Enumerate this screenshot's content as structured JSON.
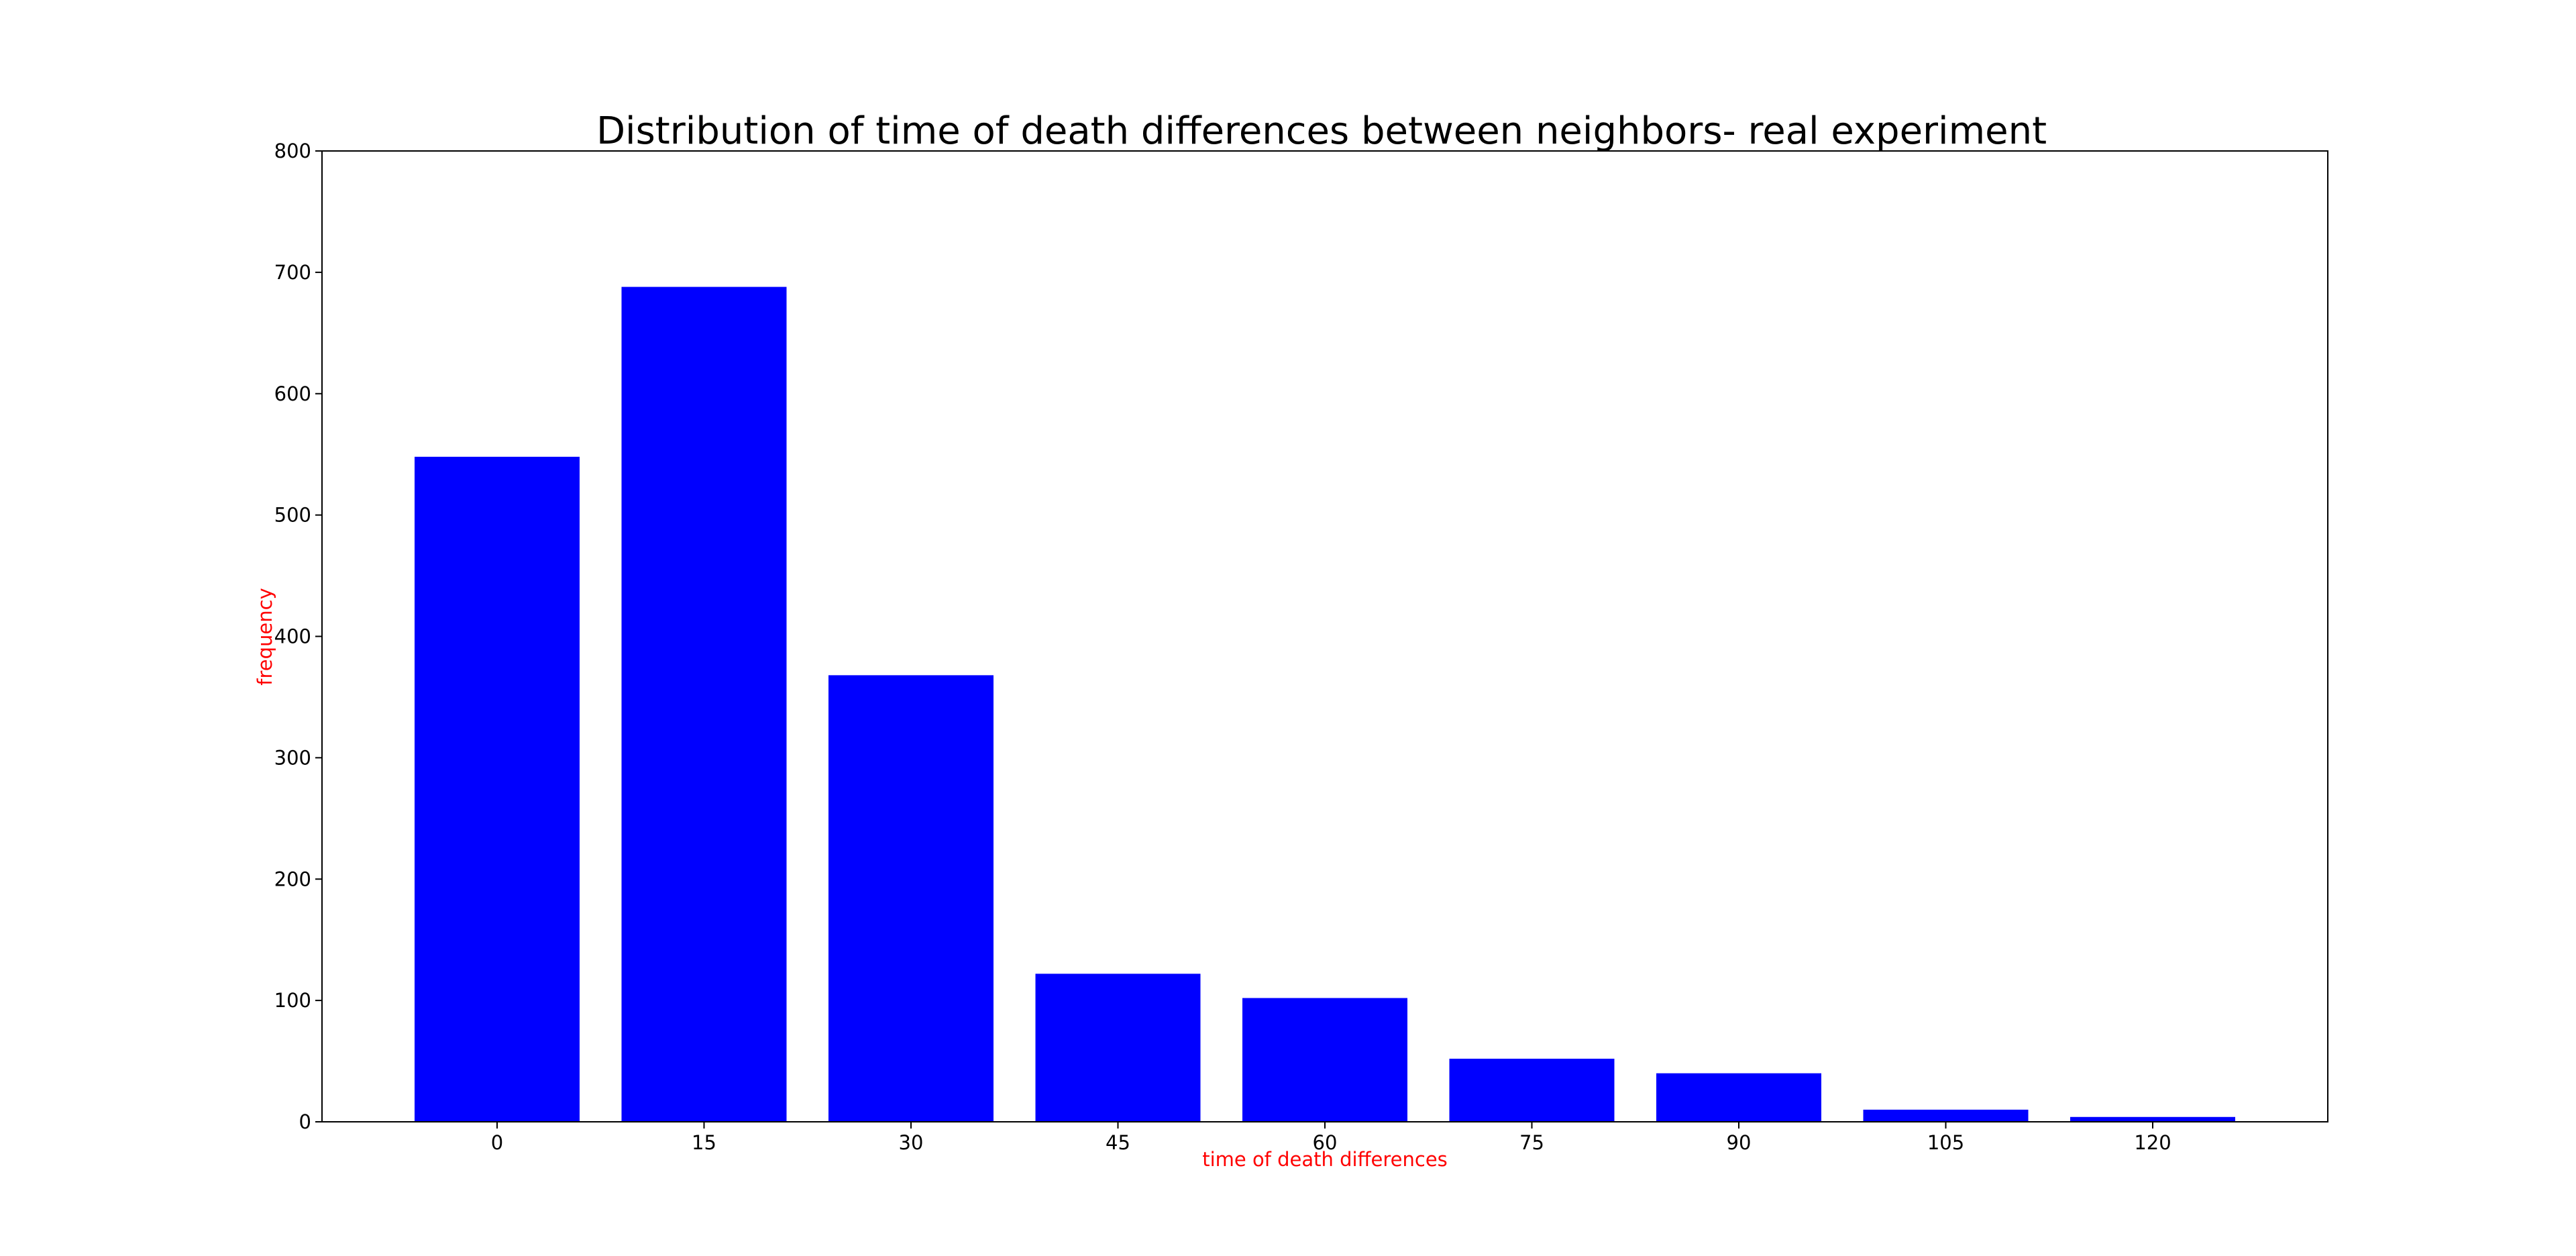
{
  "colors": {
    "bar": "#0000ff",
    "axis_label": "#ff0000",
    "frame": "#000000",
    "background": "#ffffff"
  },
  "chart_data": {
    "type": "bar",
    "title": "Distribution of time of death differences between neighbors- real experiment",
    "xlabel": "time of death differences",
    "ylabel": "frequency",
    "categories": [
      "0",
      "15",
      "30",
      "45",
      "60",
      "75",
      "90",
      "105",
      "120"
    ],
    "values": [
      548,
      688,
      368,
      122,
      102,
      52,
      40,
      10,
      4
    ],
    "ylim": [
      0,
      800
    ],
    "yticks": [
      0,
      100,
      200,
      300,
      400,
      500,
      600,
      700,
      800
    ],
    "grid": false,
    "legend": "none"
  }
}
